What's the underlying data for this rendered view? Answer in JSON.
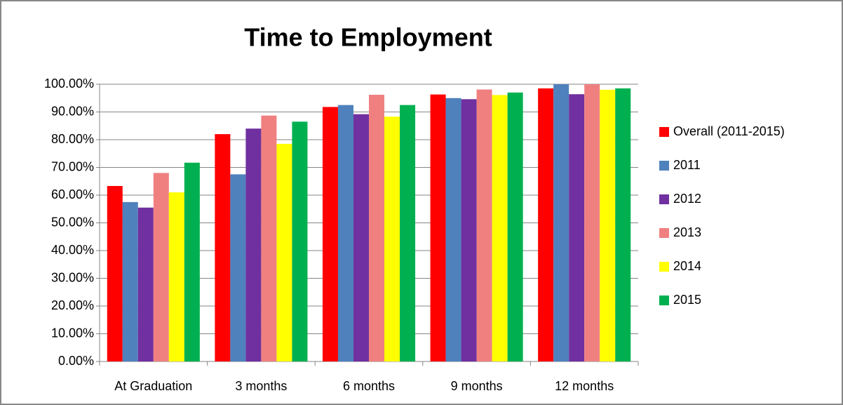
{
  "chart_data": {
    "type": "bar",
    "title": "Time to Employment",
    "categories": [
      "At Graduation",
      "3 months",
      "6 months",
      "9 months",
      "12 months"
    ],
    "series": [
      {
        "name": "Overall (2011-2015)",
        "color": "#ff0000",
        "values": [
          63.3,
          82,
          91.8,
          96.3,
          98.5
        ]
      },
      {
        "name": "2011",
        "color": "#4f81bd",
        "values": [
          57.5,
          67.5,
          92.5,
          95,
          100
        ]
      },
      {
        "name": "2012",
        "color": "#7030a0",
        "values": [
          55.5,
          84,
          89.2,
          94.6,
          96.4
        ]
      },
      {
        "name": "2013",
        "color": "#f08080",
        "values": [
          68,
          88.7,
          96.2,
          98.1,
          100
        ]
      },
      {
        "name": "2014",
        "color": "#ffff00",
        "values": [
          61,
          78.5,
          88.3,
          96.1,
          98
        ]
      },
      {
        "name": "2015",
        "color": "#00b050",
        "values": [
          71.7,
          86.5,
          92.5,
          97,
          98.5
        ]
      }
    ],
    "ylim": [
      0,
      100
    ],
    "yticks": [
      {
        "value": 0,
        "label": "0.00%"
      },
      {
        "value": 10,
        "label": "10.00%"
      },
      {
        "value": 20,
        "label": "20.00%"
      },
      {
        "value": 30,
        "label": "30.00%"
      },
      {
        "value": 40,
        "label": "40.00%"
      },
      {
        "value": 50,
        "label": "50.00%"
      },
      {
        "value": 60,
        "label": "60.00%"
      },
      {
        "value": 70,
        "label": "70.00%"
      },
      {
        "value": 80,
        "label": "80.00%"
      },
      {
        "value": 90,
        "label": "90.00%"
      },
      {
        "value": 100,
        "label": "100.00%"
      }
    ],
    "grid": true,
    "legend": "right"
  }
}
